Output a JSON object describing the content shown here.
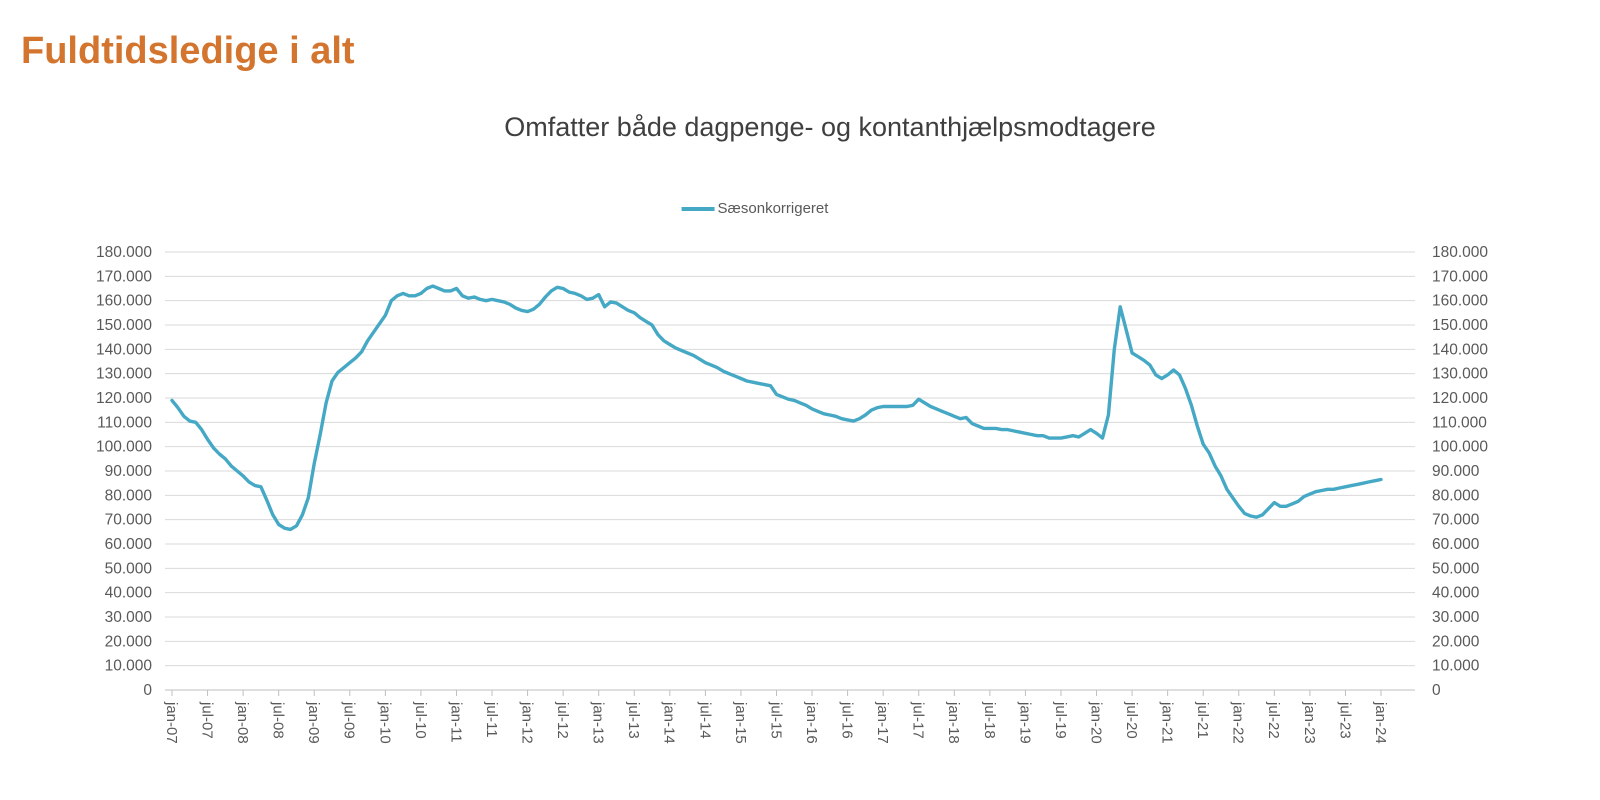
{
  "page": {
    "title": "Fuldtidsledige i alt"
  },
  "chart_data": {
    "type": "line",
    "title": "Omfatter både dagpenge- og kontanthjælpsmodtagere",
    "xlabel": "",
    "ylabel": "",
    "ylim": [
      0,
      180000
    ],
    "grid": "horizontal",
    "legend_position": "top-center",
    "x_unit": "month",
    "x_range": [
      "jan-07",
      "jan-24"
    ],
    "x_tick_labels": [
      "jan-07",
      "jul-07",
      "jan-08",
      "jul-08",
      "jan-09",
      "jul-09",
      "jan-10",
      "jul-10",
      "jan-11",
      "jul-11",
      "jan-12",
      "jul-12",
      "jan-13",
      "jul-13",
      "jan-14",
      "jul-14",
      "jan-15",
      "jul-15",
      "jan-16",
      "jul-16",
      "jan-17",
      "jul-17",
      "jan-18",
      "jul-18",
      "jan-19",
      "jul-19",
      "jan-20",
      "jul-20",
      "jan-21",
      "jul-21",
      "jan-22",
      "jul-22",
      "jan-23",
      "jul-23",
      "jan-24"
    ],
    "x_ticks_every_n_months": 6,
    "y_ticks": {
      "values": [
        0,
        10000,
        20000,
        30000,
        40000,
        50000,
        60000,
        70000,
        80000,
        90000,
        100000,
        110000,
        120000,
        130000,
        140000,
        150000,
        160000,
        170000,
        180000
      ],
      "labels": [
        "0",
        "10.000",
        "20.000",
        "30.000",
        "40.000",
        "50.000",
        "60.000",
        "70.000",
        "80.000",
        "90.000",
        "100.000",
        "110.000",
        "120.000",
        "130.000",
        "140.000",
        "150.000",
        "160.000",
        "170.000",
        "180.000"
      ]
    },
    "series": [
      {
        "name": "Sæsonkorrigeret",
        "color": "#45a8c5",
        "start": "jan-07",
        "frequency": "monthly",
        "values": [
          119000,
          116000,
          112500,
          110500,
          110000,
          107000,
          103000,
          99500,
          97000,
          95000,
          92000,
          90000,
          88000,
          85500,
          84000,
          83500,
          78000,
          72000,
          68000,
          66500,
          66000,
          67500,
          72000,
          79000,
          93000,
          105000,
          118000,
          127000,
          130500,
          132500,
          134500,
          136500,
          139000,
          143500,
          147000,
          150500,
          154000,
          160000,
          162000,
          163000,
          162000,
          162000,
          163000,
          165000,
          166000,
          165000,
          164000,
          164000,
          165000,
          162000,
          161000,
          161500,
          160500,
          160000,
          160500,
          160000,
          159500,
          158500,
          157000,
          156000,
          155500,
          156500,
          158500,
          161500,
          164000,
          165500,
          165000,
          163500,
          163000,
          162000,
          160500,
          161000,
          162500,
          157500,
          159500,
          159000,
          157500,
          156000,
          155000,
          153000,
          151500,
          150000,
          146000,
          143500,
          142000,
          140500,
          139500,
          138500,
          137500,
          136000,
          134500,
          133500,
          132500,
          131000,
          130000,
          129000,
          128000,
          127000,
          126500,
          126000,
          125500,
          125000,
          121500,
          120500,
          119500,
          119000,
          118000,
          117000,
          115500,
          114500,
          113500,
          113000,
          112500,
          111500,
          111000,
          110500,
          111500,
          113000,
          115000,
          116000,
          116500,
          116500,
          116500,
          116500,
          116500,
          117000,
          119500,
          118000,
          116500,
          115500,
          114500,
          113500,
          112500,
          111500,
          112000,
          109500,
          108500,
          107500,
          107500,
          107500,
          107000,
          107000,
          106500,
          106000,
          105500,
          105000,
          104500,
          104500,
          103500,
          103500,
          103500,
          104000,
          104500,
          104000,
          105500,
          107000,
          105500,
          103500,
          113000,
          140000,
          157500,
          148000,
          138500,
          137000,
          135500,
          133500,
          129500,
          128000,
          129500,
          131500,
          129500,
          124000,
          117000,
          108500,
          101000,
          97500,
          92000,
          88000,
          82500,
          79000,
          75500,
          72500,
          71500,
          71000,
          72000,
          74500,
          77000,
          75500,
          75500,
          76500,
          77500,
          79500,
          80500,
          81500,
          82000,
          82500,
          82500,
          83000,
          83500,
          84000,
          84500,
          85000,
          85500,
          86000,
          86500
        ]
      }
    ]
  },
  "colors": {
    "title": "#d3752e",
    "subtitle": "#3f3f3f",
    "axis_labels": "#595959",
    "gridline": "#d9d9d9",
    "series_line": "#45a8c5"
  }
}
